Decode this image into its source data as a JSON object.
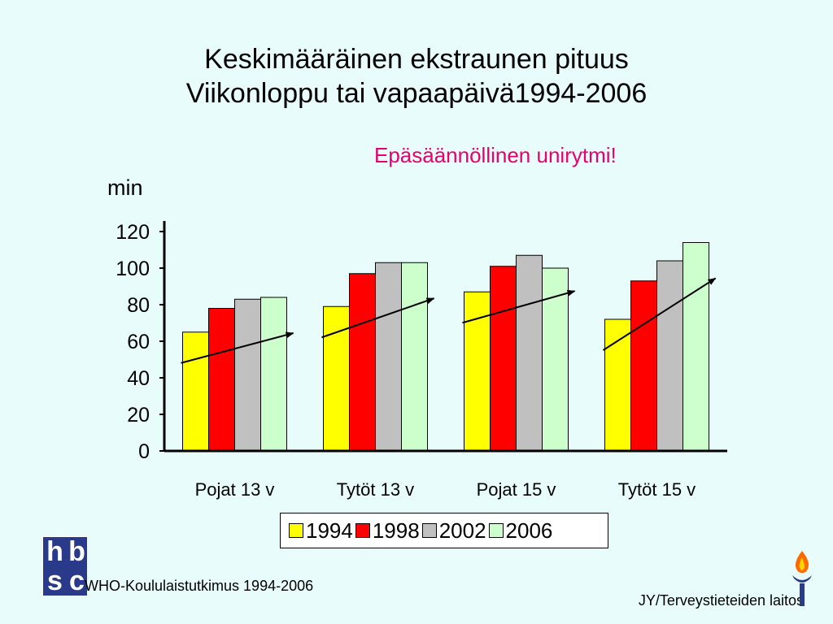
{
  "title_line1": "Keskimääräinen ekstraunen pituus",
  "title_line2": "Viikonloppu tai vapaapäivä1994-2006",
  "annotation": "Epäsäännöllinen unirytmi!",
  "footer_left": "WHO-Koululaistutkimus 1994-2006",
  "footer_right": "JY/Terveystieteiden laitos",
  "logo_text": [
    "h",
    "b",
    "s",
    "c"
  ],
  "chart_data": {
    "type": "bar",
    "ylabel": "min",
    "ylim": [
      0,
      120
    ],
    "yticks": [
      0,
      20,
      40,
      60,
      80,
      100,
      120
    ],
    "categories": [
      "Pojat 13 v",
      "Tytöt 13 v",
      "Pojat 15 v",
      "Tytöt 15 v"
    ],
    "series": [
      {
        "name": "1994",
        "color": "#ffff00",
        "values": [
          65,
          79,
          87,
          72
        ]
      },
      {
        "name": "1998",
        "color": "#ff0000",
        "values": [
          78,
          97,
          101,
          93
        ]
      },
      {
        "name": "2002",
        "color": "#c0c0c0",
        "values": [
          83,
          103,
          107,
          104
        ]
      },
      {
        "name": "2006",
        "color": "#ccffcc",
        "values": [
          84,
          103,
          100,
          114
        ]
      }
    ],
    "legend_position": "bottom",
    "grid": false,
    "trend_arrows": true
  }
}
